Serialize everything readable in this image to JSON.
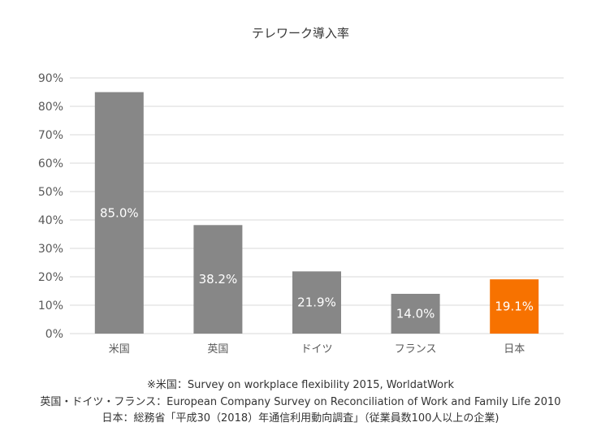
{
  "chart_data": {
    "type": "bar",
    "title": "テレワーク導入率",
    "xlabel": "",
    "ylabel": "",
    "categories": [
      "米国",
      "英国",
      "ドイツ",
      "フランス",
      "日本"
    ],
    "values": [
      85.0,
      38.2,
      21.9,
      14.0,
      19.1
    ],
    "data_labels": [
      "85.0%",
      "38.2%",
      "21.9%",
      "14.0%",
      "19.1%"
    ],
    "ylim": [
      0,
      90
    ],
    "yticks": [
      0,
      10,
      20,
      30,
      40,
      50,
      60,
      70,
      80,
      90
    ],
    "ytick_labels": [
      "0%",
      "10%",
      "20%",
      "30%",
      "40%",
      "50%",
      "60%",
      "70%",
      "80%",
      "90%"
    ],
    "grid": true,
    "legend": "none",
    "bar_colors": [
      "#878787",
      "#878787",
      "#878787",
      "#878787",
      "#f77200"
    ],
    "grid_color": "#d9d9d9",
    "label_color": "#ffffff",
    "tick_color": "#595959"
  },
  "sources": [
    "※米国：Survey on workplace flexibility 2015, WorldatWork",
    "英国・ドイツ・フランス：European Company Survey on Reconciliation of Work and Family Life 2010",
    "日本：総務省「平成30（2018）年通信利用動向調査」（従業員数100人以上の企業)"
  ]
}
